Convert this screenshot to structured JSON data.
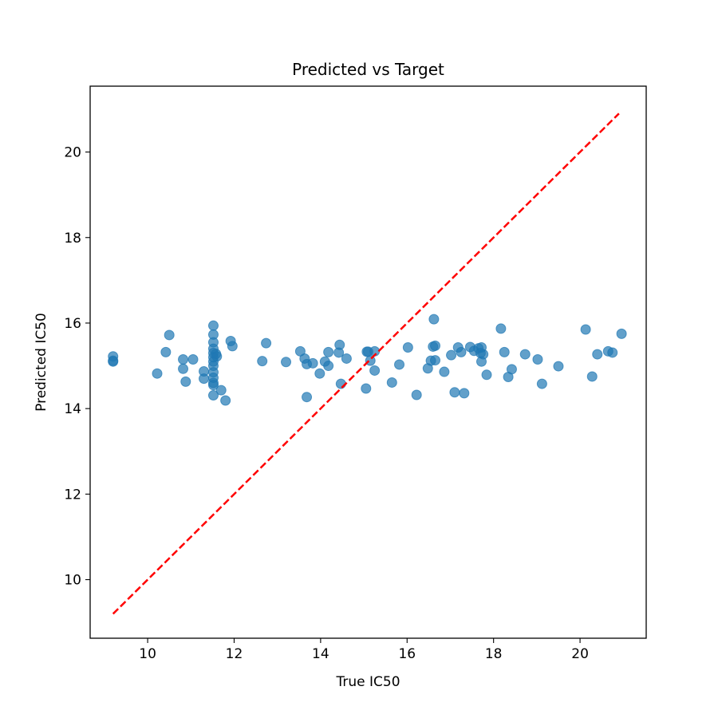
{
  "chart_data": {
    "type": "scatter",
    "title": "Predicted vs Target",
    "xlabel": "True IC50",
    "ylabel": "Predicted IC50",
    "xlim": [
      8.67,
      21.53
    ],
    "ylim": [
      8.63,
      21.54
    ],
    "xticks": [
      10,
      12,
      14,
      16,
      18,
      20
    ],
    "yticks": [
      10,
      12,
      14,
      16,
      18,
      20
    ],
    "grid": false,
    "colors": {
      "points": "#1f77b4",
      "reference_line": "#ff0000"
    },
    "reference_line": {
      "style": "dashed",
      "points": [
        [
          9.2,
          9.2
        ],
        [
          20.9,
          20.9
        ]
      ]
    },
    "points": [
      {
        "x": 9.2,
        "y": 15.22
      },
      {
        "x": 9.2,
        "y": 15.12
      },
      {
        "x": 9.2,
        "y": 15.1
      },
      {
        "x": 10.22,
        "y": 14.82
      },
      {
        "x": 10.42,
        "y": 15.32
      },
      {
        "x": 10.5,
        "y": 15.72
      },
      {
        "x": 10.82,
        "y": 15.15
      },
      {
        "x": 10.82,
        "y": 14.93
      },
      {
        "x": 10.88,
        "y": 14.63
      },
      {
        "x": 11.05,
        "y": 15.15
      },
      {
        "x": 11.3,
        "y": 14.87
      },
      {
        "x": 11.3,
        "y": 14.7
      },
      {
        "x": 11.52,
        "y": 15.94
      },
      {
        "x": 11.52,
        "y": 15.73
      },
      {
        "x": 11.52,
        "y": 15.55
      },
      {
        "x": 11.52,
        "y": 15.4
      },
      {
        "x": 11.52,
        "y": 15.3
      },
      {
        "x": 11.52,
        "y": 15.2
      },
      {
        "x": 11.52,
        "y": 15.1
      },
      {
        "x": 11.52,
        "y": 15.0
      },
      {
        "x": 11.52,
        "y": 14.85
      },
      {
        "x": 11.52,
        "y": 14.72
      },
      {
        "x": 11.52,
        "y": 14.6
      },
      {
        "x": 11.52,
        "y": 14.55
      },
      {
        "x": 11.52,
        "y": 14.31
      },
      {
        "x": 11.58,
        "y": 15.28
      },
      {
        "x": 11.6,
        "y": 15.22
      },
      {
        "x": 11.7,
        "y": 14.43
      },
      {
        "x": 11.8,
        "y": 14.19
      },
      {
        "x": 11.92,
        "y": 15.58
      },
      {
        "x": 11.96,
        "y": 15.46
      },
      {
        "x": 12.65,
        "y": 15.11
      },
      {
        "x": 12.74,
        "y": 15.53
      },
      {
        "x": 13.2,
        "y": 15.09
      },
      {
        "x": 13.53,
        "y": 15.34
      },
      {
        "x": 13.63,
        "y": 15.17
      },
      {
        "x": 13.68,
        "y": 15.04
      },
      {
        "x": 13.68,
        "y": 14.27
      },
      {
        "x": 13.82,
        "y": 15.06
      },
      {
        "x": 13.98,
        "y": 14.82
      },
      {
        "x": 14.1,
        "y": 15.1
      },
      {
        "x": 14.18,
        "y": 15.32
      },
      {
        "x": 14.18,
        "y": 15.0
      },
      {
        "x": 14.42,
        "y": 15.31
      },
      {
        "x": 14.44,
        "y": 15.49
      },
      {
        "x": 14.47,
        "y": 14.58
      },
      {
        "x": 14.6,
        "y": 15.17
      },
      {
        "x": 15.05,
        "y": 14.47
      },
      {
        "x": 15.07,
        "y": 15.33
      },
      {
        "x": 15.1,
        "y": 15.33
      },
      {
        "x": 15.15,
        "y": 15.12
      },
      {
        "x": 15.25,
        "y": 15.34
      },
      {
        "x": 15.25,
        "y": 14.89
      },
      {
        "x": 15.65,
        "y": 14.61
      },
      {
        "x": 15.82,
        "y": 15.03
      },
      {
        "x": 16.02,
        "y": 15.43
      },
      {
        "x": 16.22,
        "y": 14.32
      },
      {
        "x": 16.48,
        "y": 14.94
      },
      {
        "x": 16.55,
        "y": 15.12
      },
      {
        "x": 16.6,
        "y": 15.45
      },
      {
        "x": 16.62,
        "y": 16.09
      },
      {
        "x": 16.65,
        "y": 15.47
      },
      {
        "x": 16.65,
        "y": 15.13
      },
      {
        "x": 16.86,
        "y": 14.86
      },
      {
        "x": 17.02,
        "y": 15.25
      },
      {
        "x": 17.1,
        "y": 14.38
      },
      {
        "x": 17.18,
        "y": 15.43
      },
      {
        "x": 17.25,
        "y": 15.32
      },
      {
        "x": 17.32,
        "y": 14.36
      },
      {
        "x": 17.46,
        "y": 15.44
      },
      {
        "x": 17.55,
        "y": 15.35
      },
      {
        "x": 17.65,
        "y": 15.41
      },
      {
        "x": 17.7,
        "y": 15.3
      },
      {
        "x": 17.72,
        "y": 15.43
      },
      {
        "x": 17.72,
        "y": 15.1
      },
      {
        "x": 17.76,
        "y": 15.27
      },
      {
        "x": 17.84,
        "y": 14.79
      },
      {
        "x": 18.17,
        "y": 15.87
      },
      {
        "x": 18.25,
        "y": 15.32
      },
      {
        "x": 18.34,
        "y": 14.74
      },
      {
        "x": 18.42,
        "y": 14.92
      },
      {
        "x": 18.73,
        "y": 15.27
      },
      {
        "x": 19.02,
        "y": 15.15
      },
      {
        "x": 19.12,
        "y": 14.58
      },
      {
        "x": 19.5,
        "y": 14.99
      },
      {
        "x": 20.13,
        "y": 15.85
      },
      {
        "x": 20.28,
        "y": 14.75
      },
      {
        "x": 20.4,
        "y": 15.27
      },
      {
        "x": 20.65,
        "y": 15.34
      },
      {
        "x": 20.75,
        "y": 15.31
      },
      {
        "x": 20.96,
        "y": 15.75
      }
    ]
  }
}
